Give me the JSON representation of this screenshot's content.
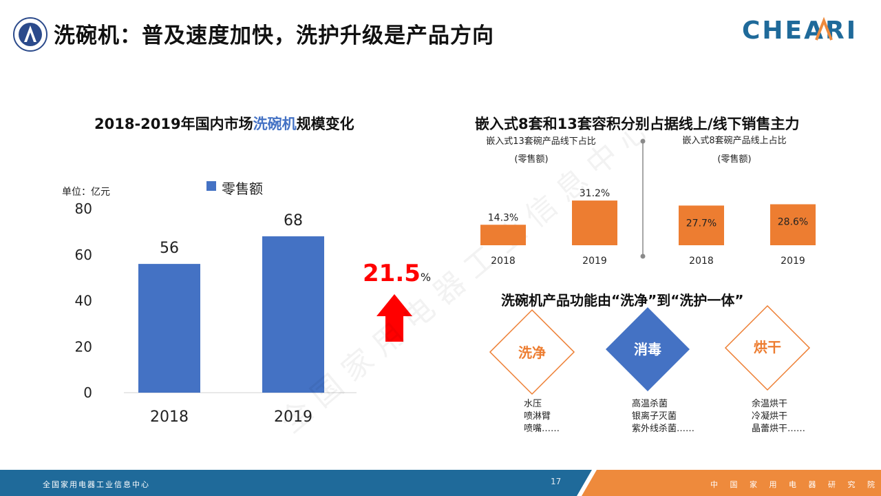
{
  "page": {
    "title": "洗碗机：普及速度加快，洗护升级是产品方向",
    "logo_right_text": "CHEARI",
    "page_number": "17",
    "footer_left": "全国家用电器工业信息中心",
    "footer_right": "中 国 家 用 电 器 研 究 院"
  },
  "colors": {
    "blue": "#4472c4",
    "orange": "#ed7d31",
    "red": "#ff0000",
    "footer_blue": "#1f6a9a",
    "footer_orange": "#ee8a3c"
  },
  "left_chart": {
    "title_pre": "2018-2019年国内市场",
    "title_hl": "洗碗机",
    "title_post": "规模变化",
    "unit": "单位：亿元",
    "growth": "21.5",
    "growth_unit": "%"
  },
  "chart_data": [
    {
      "type": "bar",
      "title": "2018-2019年国内市场洗碗机规模变化",
      "categories": [
        "2018",
        "2019"
      ],
      "series": [
        {
          "name": "零售额",
          "values": [
            56,
            68
          ]
        }
      ],
      "data_labels": [
        "56",
        "68"
      ],
      "ylim": [
        0,
        80
      ],
      "yticks": [
        "0",
        "20",
        "40",
        "60",
        "80"
      ],
      "ylabel": "单位：亿元",
      "legend": "top",
      "grid": false
    },
    {
      "type": "bar",
      "title": "嵌入式13套碗产品线下占比",
      "subtitle": "(零售额)",
      "categories": [
        "2018",
        "2019"
      ],
      "values": [
        14.3,
        31.2
      ],
      "data_labels": [
        "14.3%",
        "31.2%"
      ]
    },
    {
      "type": "bar",
      "title": "嵌入式8套碗产品线上占比",
      "subtitle": "(零售额)",
      "categories": [
        "2018",
        "2019"
      ],
      "values": [
        27.7,
        28.6
      ],
      "data_labels": [
        "27.7%",
        "28.6%"
      ]
    }
  ],
  "right_top": {
    "title": "嵌入式8套和13套容积分别占据线上/线下销售主力"
  },
  "right_bottom": {
    "title": "洗碗机产品功能由“洗净”到“洗护一体”",
    "features": [
      {
        "label": "洗净",
        "items": [
          "水压",
          "喷淋臂",
          "喷嘴……"
        ]
      },
      {
        "label": "消毒",
        "items": [
          "高温杀菌",
          "银离子灭菌",
          "紫外线杀菌……"
        ]
      },
      {
        "label": "烘干",
        "items": [
          "余温烘干",
          "冷凝烘干",
          "晶蕾烘干……"
        ]
      }
    ]
  }
}
